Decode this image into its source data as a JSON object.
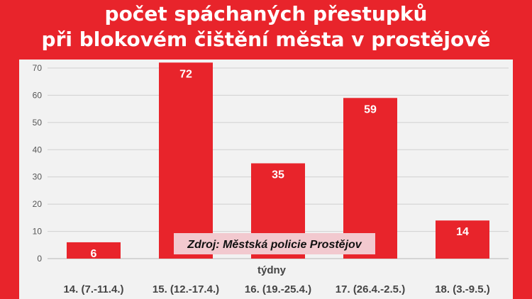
{
  "title_lines": [
    "počet spáchaných přestupků",
    "při blokovém čištění města v prostějově"
  ],
  "source_note": "Zdroj: Městská policie Prostějov",
  "colors": {
    "background": "#e8242b",
    "bar": "#e8242b",
    "panel": "#f2f2f2"
  },
  "chart_data": {
    "type": "bar",
    "title": "počet spáchaných přestupků při blokovém čištění města v prostějově",
    "xlabel": "týdny",
    "ylabel": "",
    "categories": [
      "14. (7.-11.4.)",
      "15. (12.-17.4.)",
      "16. (19.-25.4.)",
      "17. (26.4.-2.5.)",
      "18. (3.-9.5.)"
    ],
    "values": [
      6,
      72,
      35,
      59,
      14
    ],
    "ylim": [
      0,
      70
    ],
    "yticks": [
      0,
      10,
      20,
      30,
      40,
      50,
      60,
      70
    ],
    "grid": true,
    "legend": "none"
  }
}
